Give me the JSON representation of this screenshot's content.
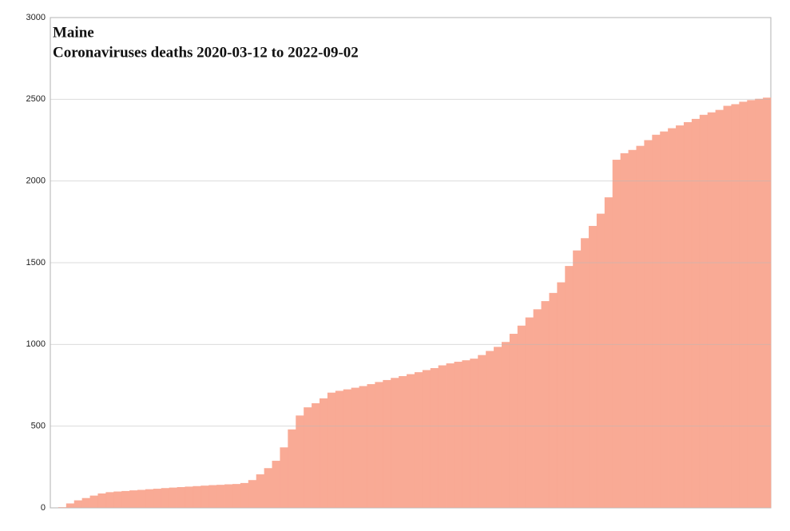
{
  "chart_data": {
    "type": "bar",
    "title": "Maine",
    "subtitle": "Coronaviruses deaths 2020-03-12 to 2022-09-02",
    "categories": [
      null,
      null,
      null,
      null,
      null,
      null,
      null,
      null,
      null,
      null,
      null,
      null,
      null,
      null,
      null,
      null,
      null,
      null,
      null,
      null,
      null,
      null,
      null,
      null,
      null,
      null,
      null,
      null,
      null,
      null,
      null,
      null,
      null,
      null,
      null,
      null,
      null,
      null,
      null,
      null,
      null,
      null,
      null,
      null,
      null,
      null,
      null,
      null,
      null,
      null,
      null,
      null,
      null,
      null,
      null,
      null,
      null,
      null,
      null,
      null,
      null,
      null,
      null,
      null,
      null,
      null,
      null,
      null,
      null,
      null,
      null,
      null,
      null,
      null,
      null,
      null,
      null,
      null,
      null,
      null,
      null,
      null,
      null,
      null,
      null,
      null,
      null,
      null,
      null,
      null,
      null
    ],
    "values": [
      0,
      4,
      27,
      46,
      60,
      75,
      88,
      96,
      100,
      103,
      107,
      110,
      114,
      117,
      121,
      124,
      127,
      130,
      133,
      136,
      139,
      141,
      144,
      146,
      152,
      170,
      205,
      243,
      288,
      370,
      480,
      565,
      615,
      640,
      670,
      705,
      716,
      725,
      735,
      745,
      757,
      770,
      782,
      795,
      806,
      818,
      830,
      843,
      855,
      872,
      884,
      894,
      903,
      913,
      935,
      960,
      985,
      1015,
      1065,
      1115,
      1165,
      1215,
      1265,
      1315,
      1380,
      1480,
      1575,
      1650,
      1725,
      1800,
      1900,
      2130,
      2170,
      2190,
      2215,
      2250,
      2283,
      2303,
      2323,
      2340,
      2360,
      2380,
      2405,
      2420,
      2435,
      2460,
      2470,
      2485,
      2495,
      2503,
      2510
    ],
    "color": "#f9a58f",
    "ylim": [
      0,
      3000
    ],
    "yticks": [
      0,
      500,
      1000,
      1500,
      2000,
      2500,
      3000
    ],
    "grid": true
  }
}
